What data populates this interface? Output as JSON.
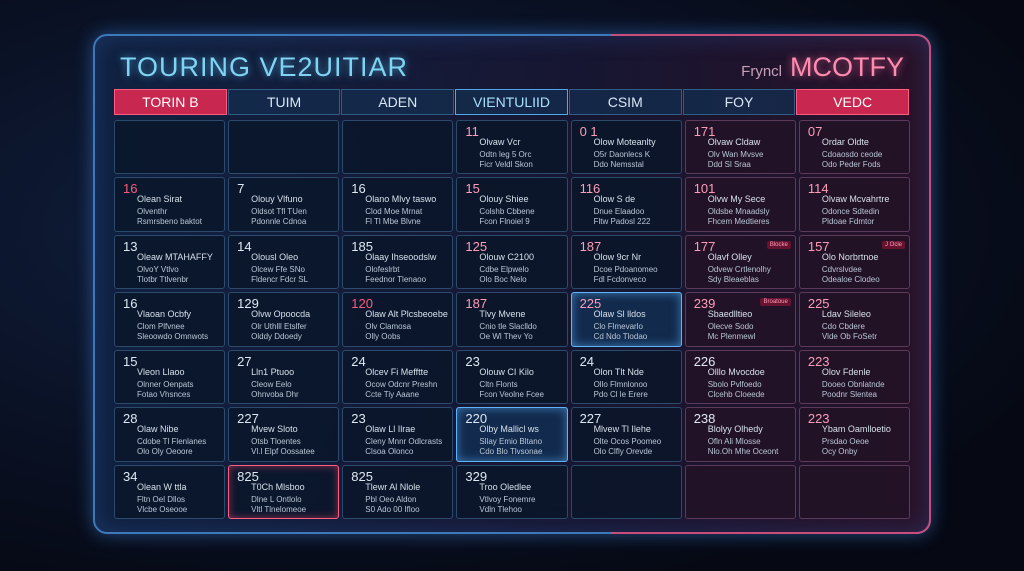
{
  "header": {
    "title": "TOURING VE2UITIAR",
    "right_small": "Fryncl",
    "right_big": "MCOTFY"
  },
  "day_headers": [
    "TORIN B",
    "TUIM",
    "ADEN",
    "VIENTULIID",
    "CSIM",
    "FOY",
    "VEDC"
  ],
  "rows": [
    [
      {
        "num": "",
        "l1": "",
        "l2": "",
        "l3": ""
      },
      {
        "num": "",
        "l1": "",
        "l2": "",
        "l3": ""
      },
      {
        "num": "",
        "l1": "",
        "l2": "",
        "l3": ""
      },
      {
        "num": "11",
        "l1": "Olvaw Vcr",
        "l2": "Odtn leg 5 Orc",
        "l3": "Ficr Veldl Skon"
      },
      {
        "num": "0 1",
        "l1": "Olow Moteanlty",
        "l2": "O5r Daonlecs K",
        "l3": "Ddo Nemsstal"
      },
      {
        "num": "171",
        "l1": "Olvaw Cldaw",
        "l2": "Olv Wan Mvsve",
        "l3": "Ddd Sl Sraa"
      },
      {
        "num": "07",
        "l1": "Ordar Oldte",
        "l2": "Cdoaosdo ceode",
        "l3": "Odo Peder Fods"
      }
    ],
    [
      {
        "num": "16",
        "l1": "Olean Sirat",
        "l2": "Olventhr",
        "l3": "Rsmrsbeno baktot"
      },
      {
        "num": "7",
        "l1": "Olouy Vlfuno",
        "l2": "Oldsot Tfl TUen",
        "l3": "Pdonnle Cdnoa"
      },
      {
        "num": "16",
        "l1": "Olano Mlvy taswo",
        "l2": "Clod Moe Mrnat",
        "l3": "Fl Tl Mbe Blvne"
      },
      {
        "num": "15",
        "l1": "Olouy Shiee",
        "l2": "Colshb Cbbene",
        "l3": "Fcon Flnoiel 9"
      },
      {
        "num": "116",
        "l1": "Olow S de",
        "l2": "Dnue Elaadoo",
        "l3": "Fltw Padosl 222"
      },
      {
        "num": "101",
        "l1": "Olvw My Sece",
        "l2": "Oldsbe Mnaadsly",
        "l3": "Fhcem Medtieres"
      },
      {
        "num": "114",
        "l1": "Olvaw Mcvahrtre",
        "l2": "Odonce Sdtedin",
        "l3": "Pldoae Fdmtor"
      }
    ],
    [
      {
        "num": "13",
        "l1": "Oleaw MTAHAFFY",
        "l2": "OlvoY Vtlvo",
        "l3": "Tlotbr Ttlvenbr"
      },
      {
        "num": "14",
        "l1": "Olousl Oleo",
        "l2": "Olcew Ffe SNo",
        "l3": "Fldencr Fdcr SL"
      },
      {
        "num": "185",
        "l1": "Olaay Ihseoodslw",
        "l2": "Olofeslrbt",
        "l3": "Feednor Tlenaoo"
      },
      {
        "num": "125",
        "l1": "Olouw C2100",
        "l2": "Cdbe Elpwelo",
        "l3": "Olo Boc Nelo"
      },
      {
        "num": "187",
        "l1": "Olow 9cr Nr",
        "l2": "Dcoe Pdoanomeo",
        "l3": "Fdl Fcdonveco"
      },
      {
        "num": "177",
        "l1": "Olavf Olley",
        "l2": "Odvew Crtlenolhy",
        "l3": "Sdy Bleaeblas"
      },
      {
        "num": "157",
        "l1": "Olo Norbrtnoe",
        "l2": "Cdvrslvdee",
        "l3": "Odealoe Clodeo"
      }
    ],
    [
      {
        "num": "16",
        "l1": "Vlaoan Ocbfy",
        "l2": "Clom Plfvnee",
        "l3": "Sleoowdo Omnwots"
      },
      {
        "num": "129",
        "l1": "Olvw Opoocda",
        "l2": "Olr Uthlll Etslfer",
        "l3": "Olddy Ddoedy"
      },
      {
        "num": "120",
        "l1": "Olaw Alt Plcsbeoebe",
        "l2": "Olv Clamosa",
        "l3": "Olly Oobs"
      },
      {
        "num": "187",
        "l1": "Tlvy Mvene",
        "l2": "Cnio tle Slaclldo",
        "l3": "Oe Wl Thev Yo"
      },
      {
        "num": "225",
        "l1": "Olaw Sl lldos",
        "l2": "Clo Flmevarlo",
        "l3": "Cd Ndo Tlodao"
      },
      {
        "num": "239",
        "l1": "Sbaedlltieo",
        "l2": "Olecve Sodo",
        "l3": "Mc Plenmewl"
      },
      {
        "num": "225",
        "l1": "Ldav Sileleo",
        "l2": "Cdo Cbdere",
        "l3": "Vlde Ob FoSetr"
      }
    ],
    [
      {
        "num": "15",
        "l1": "Vleon Llaoo",
        "l2": "Olnner Oenpats",
        "l3": "Fotao Vhsnces"
      },
      {
        "num": "27",
        "l1": "Lln1 Ptuoo",
        "l2": "Cleow Eelo",
        "l3": "Ohnvoba Dhr"
      },
      {
        "num": "24",
        "l1": "Olcev Fi Mefftte",
        "l2": "Ocow Odcnr Preshn",
        "l3": "Ccte Tiy Aaane"
      },
      {
        "num": "23",
        "l1": "Olouw CI Kilo",
        "l2": "Cltn Flonts",
        "l3": "Fcon Veolne Fcee"
      },
      {
        "num": "24",
        "l1": "Olon Tlt Nde",
        "l2": "Ollo Flmnlonoo",
        "l3": "Pdo Cl le Erere"
      },
      {
        "num": "226",
        "l1": "Olllo Mvocdoe",
        "l2": "Sbolo Pvlfoedo",
        "l3": "Clcehb Cloeede"
      },
      {
        "num": "223",
        "l1": "Olov Fdenle",
        "l2": "Dooeo Obnlatnde",
        "l3": "Poodnr Slentea"
      }
    ],
    [
      {
        "num": "28",
        "l1": "Olaw Nibe",
        "l2": "Cdobe Tl Flenlanes",
        "l3": "Olo Oly Oeoore"
      },
      {
        "num": "227",
        "l1": "Mvew Sloto",
        "l2": "Otsb Tloentes",
        "l3": "Vl.l Elpf Oossatee"
      },
      {
        "num": "23",
        "l1": "Olaw Ll Ilrae",
        "l2": "Cleny Mnnr Odlcrasts",
        "l3": "Clsoa Olonco"
      },
      {
        "num": "220",
        "l1": "Olby Mallicl ws",
        "l2": "Sllay Emio Bltano",
        "l3": "Cdo Blo Tlvsonae"
      },
      {
        "num": "227",
        "l1": "Mlvew Tl Ilehe",
        "l2": "Olte Ocos Poomeo",
        "l3": "Olo Clfly Orevde"
      },
      {
        "num": "238",
        "l1": "Blolyy Olhedy",
        "l2": "Ofln Ali Mlosse",
        "l3": "Nlo.Oh Mhe Oceont"
      },
      {
        "num": "223",
        "l1": "Ybam Oamlloetio",
        "l2": "Prsdao Oeoe",
        "l3": "Ocy Onby"
      }
    ],
    [
      {
        "num": "34",
        "l1": "Olean W ttla",
        "l2": "Fltn Oel Dllos",
        "l3": "Vlcbe Oseooe"
      },
      {
        "num": "825",
        "l1": "T0Ch Mlsboo",
        "l2": "Dlne L Ontlolo",
        "l3": "Vltl Tlnelomeoe"
      },
      {
        "num": "825",
        "l1": "Tlewr Al Nlole",
        "l2": "Pbl Oeo Aldon",
        "l3": "S0 Ado 00 Ifloo"
      },
      {
        "num": "329",
        "l1": "Troo Oledlee",
        "l2": "Vtlvoy Fonemre",
        "l3": "Vdln Tlehoo"
      },
      {
        "num": "",
        "l1": "",
        "l2": "",
        "l3": ""
      },
      {
        "num": "",
        "l1": "",
        "l2": "",
        "l3": ""
      },
      {
        "num": "",
        "l1": "",
        "l2": "",
        "l3": ""
      }
    ]
  ],
  "badges": {
    "r2c5": "Blocke",
    "r2c6": "J Ocle",
    "r3c5": "Broatoue"
  }
}
